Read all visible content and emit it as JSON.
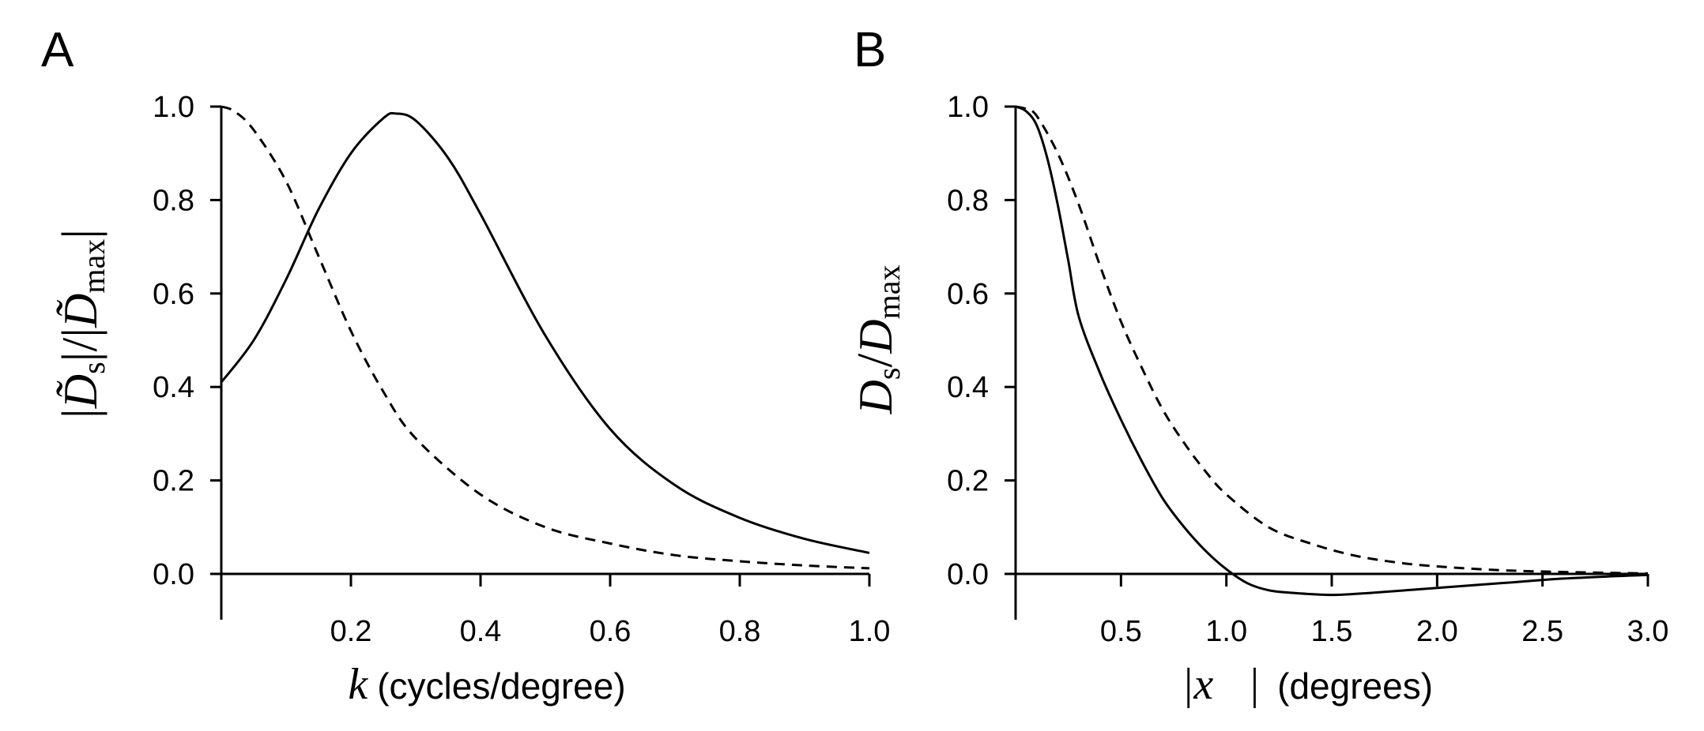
{
  "chart_data": [
    {
      "panel": "A",
      "type": "line",
      "xlabel_var": "k",
      "xlabel_text": "(cycles/degree)",
      "ylabel": "|D̃s|/|D̃max|",
      "xlim": [
        0,
        1.0
      ],
      "ylim": [
        0,
        1.0
      ],
      "xticks": [
        "0.2",
        "0.4",
        "0.6",
        "0.8",
        "1.0"
      ],
      "yticks": [
        "0.0",
        "0.2",
        "0.4",
        "0.6",
        "0.8",
        "1.0"
      ],
      "series": [
        {
          "style": "solid",
          "x": [
            0.0,
            0.05,
            0.1,
            0.15,
            0.2,
            0.25,
            0.27,
            0.3,
            0.35,
            0.4,
            0.5,
            0.6,
            0.7,
            0.8,
            0.9,
            1.0
          ],
          "y": [
            0.41,
            0.5,
            0.63,
            0.78,
            0.9,
            0.975,
            0.985,
            0.97,
            0.89,
            0.77,
            0.51,
            0.31,
            0.19,
            0.12,
            0.075,
            0.045
          ]
        },
        {
          "style": "dashed",
          "x": [
            0.0,
            0.02,
            0.05,
            0.1,
            0.15,
            0.2,
            0.25,
            0.3,
            0.4,
            0.5,
            0.6,
            0.7,
            0.8,
            0.9,
            1.0
          ],
          "y": [
            1.0,
            0.99,
            0.95,
            0.84,
            0.68,
            0.52,
            0.39,
            0.29,
            0.17,
            0.1,
            0.065,
            0.04,
            0.027,
            0.018,
            0.012
          ]
        }
      ]
    },
    {
      "panel": "B",
      "type": "line",
      "xlabel_var": "|x⃗|",
      "xlabel_text": "(degrees)",
      "ylabel": "Ds/Dmax",
      "xlim": [
        0,
        3.0
      ],
      "ylim": [
        0,
        1.0
      ],
      "xticks": [
        "0.5",
        "1.0",
        "1.5",
        "2.0",
        "2.5",
        "3.0"
      ],
      "yticks": [
        "0.0",
        "0.2",
        "0.4",
        "0.6",
        "0.8",
        "1.0"
      ],
      "series": [
        {
          "style": "solid",
          "x": [
            0.0,
            0.05,
            0.1,
            0.15,
            0.2,
            0.25,
            0.3,
            0.4,
            0.5,
            0.6,
            0.7,
            0.8,
            0.9,
            1.0,
            1.1,
            1.2,
            1.3,
            1.5,
            1.7,
            2.0,
            2.3,
            2.6,
            3.0
          ],
          "y": [
            1.0,
            0.99,
            0.96,
            0.89,
            0.79,
            0.67,
            0.55,
            0.43,
            0.33,
            0.24,
            0.16,
            0.1,
            0.05,
            0.01,
            -0.02,
            -0.035,
            -0.04,
            -0.045,
            -0.04,
            -0.03,
            -0.02,
            -0.01,
            -0.002
          ]
        },
        {
          "style": "dashed",
          "x": [
            0.0,
            0.05,
            0.1,
            0.2,
            0.3,
            0.4,
            0.5,
            0.6,
            0.7,
            0.8,
            0.9,
            1.0,
            1.2,
            1.4,
            1.6,
            1.8,
            2.0,
            2.3,
            2.6,
            3.0
          ],
          "y": [
            1.0,
            0.995,
            0.98,
            0.9,
            0.79,
            0.66,
            0.54,
            0.44,
            0.35,
            0.28,
            0.22,
            0.17,
            0.1,
            0.065,
            0.04,
            0.025,
            0.016,
            0.008,
            0.004,
            0.001
          ]
        }
      ]
    }
  ]
}
